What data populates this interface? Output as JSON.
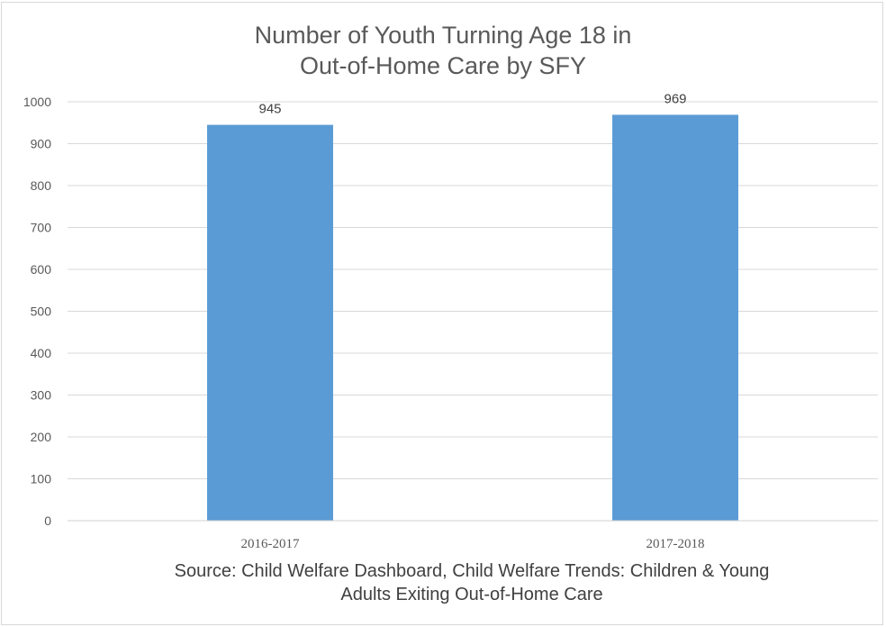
{
  "chart_data": {
    "type": "bar",
    "title_lines": [
      "Number of Youth Turning Age 18 in",
      "Out-of-Home Care by SFY"
    ],
    "categories": [
      "2016-2017",
      "2017-2018"
    ],
    "values": [
      945,
      969
    ],
    "data_labels": [
      "945",
      "969"
    ],
    "ylim": [
      0,
      1000
    ],
    "yticks": [
      0,
      100,
      200,
      300,
      400,
      500,
      600,
      700,
      800,
      900,
      1000
    ],
    "grid": true,
    "xlabel": "",
    "ylabel": "",
    "bar_color": "#5b9bd5",
    "gridline_color": "#d9d9d9"
  },
  "source_lines": [
    "Source: Child Welfare Dashboard, Child Welfare Trends: Children & Young",
    "Adults Exiting Out-of-Home Care"
  ]
}
